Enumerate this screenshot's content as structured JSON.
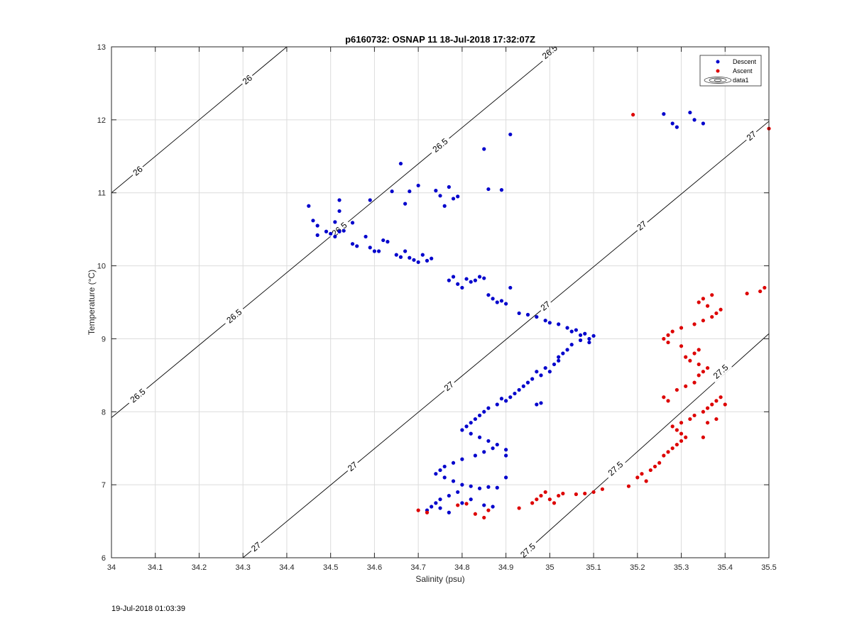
{
  "chart_data": {
    "type": "scatter",
    "title": "p6160732: OSNAP 11 18-Jul-2018 17:32:07Z",
    "xlabel": "Salinity (psu)",
    "ylabel": "Temperature (°C)",
    "xlim": [
      34,
      35.5
    ],
    "ylim": [
      6,
      13
    ],
    "xticks": [
      "34",
      "34.1",
      "34.2",
      "34.3",
      "34.4",
      "34.5",
      "34.6",
      "34.7",
      "34.8",
      "34.9",
      "35",
      "35.1",
      "35.2",
      "35.3",
      "35.4",
      "35.5"
    ],
    "yticks": [
      "6",
      "7",
      "8",
      "9",
      "10",
      "11",
      "12",
      "13"
    ],
    "grid": true,
    "legend_position": "top-right",
    "legend": [
      "Descent",
      "Ascent",
      "data1"
    ],
    "colors": {
      "descent": "#0000cc",
      "ascent": "#dd0000",
      "contour": "#000000",
      "grid": "#dcdcdc"
    },
    "contours": [
      {
        "level": "26",
        "points": [
          [
            34,
            11.0
          ],
          [
            34.5,
            13.5
          ]
        ],
        "labels": [
          [
            34.06,
            11.3
          ],
          [
            34.31,
            12.55
          ]
        ]
      },
      {
        "level": "26.5",
        "points": [
          [
            34,
            7.92
          ],
          [
            35.2,
            13.88
          ]
        ],
        "labels": [
          [
            34.06,
            8.22
          ],
          [
            34.28,
            9.31
          ],
          [
            34.52,
            10.5
          ],
          [
            34.75,
            11.65
          ],
          [
            35.0,
            12.93
          ]
        ]
      },
      {
        "level": "27",
        "points": [
          [
            34.3,
            6.0
          ],
          [
            35.5,
            11.98
          ]
        ],
        "labels": [
          [
            34.33,
            6.15
          ],
          [
            34.55,
            7.25
          ],
          [
            34.77,
            8.35
          ],
          [
            34.99,
            9.45
          ],
          [
            35.21,
            10.55
          ],
          [
            35.46,
            11.78
          ]
        ]
      },
      {
        "level": "27.5",
        "points": [
          [
            34.93,
            6.0
          ],
          [
            35.5,
            9.07
          ]
        ],
        "labels": [
          [
            34.95,
            6.1
          ],
          [
            35.15,
            7.22
          ],
          [
            35.39,
            8.55
          ]
        ]
      }
    ],
    "series": [
      {
        "name": "Descent",
        "points": [
          [
            34.45,
            10.82
          ],
          [
            34.46,
            10.62
          ],
          [
            34.47,
            10.55
          ],
          [
            34.47,
            10.42
          ],
          [
            34.49,
            10.47
          ],
          [
            34.5,
            10.44
          ],
          [
            34.51,
            10.4
          ],
          [
            34.52,
            10.47
          ],
          [
            34.53,
            10.48
          ],
          [
            34.52,
            10.9
          ],
          [
            34.52,
            10.75
          ],
          [
            34.51,
            10.6
          ],
          [
            34.55,
            10.59
          ],
          [
            34.55,
            10.3
          ],
          [
            34.56,
            10.27
          ],
          [
            34.58,
            10.4
          ],
          [
            34.59,
            10.25
          ],
          [
            34.6,
            10.2
          ],
          [
            34.61,
            10.2
          ],
          [
            34.62,
            10.35
          ],
          [
            34.63,
            10.33
          ],
          [
            34.59,
            10.9
          ],
          [
            34.64,
            11.02
          ],
          [
            34.66,
            11.4
          ],
          [
            34.67,
            10.85
          ],
          [
            34.68,
            11.02
          ],
          [
            34.7,
            11.1
          ],
          [
            34.65,
            10.15
          ],
          [
            34.66,
            10.12
          ],
          [
            34.67,
            10.2
          ],
          [
            34.68,
            10.11
          ],
          [
            34.69,
            10.08
          ],
          [
            34.7,
            10.05
          ],
          [
            34.71,
            10.15
          ],
          [
            34.72,
            10.07
          ],
          [
            34.73,
            10.1
          ],
          [
            34.74,
            11.03
          ],
          [
            34.75,
            10.96
          ],
          [
            34.76,
            10.82
          ],
          [
            34.77,
            11.08
          ],
          [
            34.78,
            10.92
          ],
          [
            34.79,
            10.95
          ],
          [
            34.85,
            11.6
          ],
          [
            34.86,
            11.05
          ],
          [
            34.89,
            11.04
          ],
          [
            34.91,
            11.8
          ],
          [
            34.77,
            9.8
          ],
          [
            34.78,
            9.85
          ],
          [
            34.79,
            9.75
          ],
          [
            34.8,
            9.7
          ],
          [
            34.81,
            9.82
          ],
          [
            34.82,
            9.78
          ],
          [
            34.83,
            9.8
          ],
          [
            34.84,
            9.85
          ],
          [
            34.85,
            9.83
          ],
          [
            34.86,
            9.6
          ],
          [
            34.87,
            9.55
          ],
          [
            34.88,
            9.5
          ],
          [
            34.89,
            9.52
          ],
          [
            34.9,
            9.48
          ],
          [
            34.91,
            9.7
          ],
          [
            34.93,
            9.35
          ],
          [
            34.95,
            9.33
          ],
          [
            34.97,
            9.3
          ],
          [
            34.99,
            9.25
          ],
          [
            35.0,
            9.22
          ],
          [
            35.02,
            9.2
          ],
          [
            35.04,
            9.15
          ],
          [
            35.05,
            9.1
          ],
          [
            35.06,
            9.12
          ],
          [
            35.07,
            9.05
          ],
          [
            35.08,
            9.07
          ],
          [
            35.09,
            9.0
          ],
          [
            35.1,
            9.04
          ],
          [
            35.09,
            8.95
          ],
          [
            35.07,
            8.98
          ],
          [
            35.05,
            8.92
          ],
          [
            35.04,
            8.85
          ],
          [
            35.03,
            8.8
          ],
          [
            35.02,
            8.75
          ],
          [
            35.02,
            8.7
          ],
          [
            35.01,
            8.65
          ],
          [
            35.0,
            8.55
          ],
          [
            34.99,
            8.6
          ],
          [
            34.98,
            8.5
          ],
          [
            34.97,
            8.55
          ],
          [
            34.96,
            8.45
          ],
          [
            34.95,
            8.4
          ],
          [
            34.94,
            8.35
          ],
          [
            34.93,
            8.3
          ],
          [
            34.92,
            8.25
          ],
          [
            34.91,
            8.2
          ],
          [
            34.9,
            8.15
          ],
          [
            34.89,
            8.18
          ],
          [
            34.88,
            8.1
          ],
          [
            34.97,
            8.1
          ],
          [
            34.98,
            8.12
          ],
          [
            34.86,
            8.05
          ],
          [
            34.85,
            8.0
          ],
          [
            34.84,
            7.95
          ],
          [
            34.83,
            7.9
          ],
          [
            34.82,
            7.85
          ],
          [
            34.81,
            7.8
          ],
          [
            34.8,
            7.75
          ],
          [
            34.82,
            7.7
          ],
          [
            34.84,
            7.65
          ],
          [
            34.86,
            7.6
          ],
          [
            34.88,
            7.55
          ],
          [
            34.87,
            7.5
          ],
          [
            34.85,
            7.45
          ],
          [
            34.9,
            7.48
          ],
          [
            34.83,
            7.4
          ],
          [
            34.8,
            7.35
          ],
          [
            34.78,
            7.3
          ],
          [
            34.76,
            7.25
          ],
          [
            34.75,
            7.2
          ],
          [
            34.74,
            7.15
          ],
          [
            34.76,
            7.1
          ],
          [
            34.78,
            7.05
          ],
          [
            34.8,
            7.0
          ],
          [
            34.82,
            6.98
          ],
          [
            34.84,
            6.95
          ],
          [
            34.86,
            6.97
          ],
          [
            34.88,
            6.96
          ],
          [
            34.79,
            6.9
          ],
          [
            34.77,
            6.85
          ],
          [
            34.75,
            6.8
          ],
          [
            34.74,
            6.75
          ],
          [
            34.73,
            6.7
          ],
          [
            34.72,
            6.65
          ],
          [
            34.75,
            6.68
          ],
          [
            34.77,
            6.62
          ],
          [
            34.8,
            6.75
          ],
          [
            34.85,
            6.72
          ],
          [
            34.87,
            6.7
          ],
          [
            34.82,
            6.8
          ],
          [
            34.9,
            7.1
          ],
          [
            34.9,
            7.4
          ],
          [
            35.26,
            12.08
          ],
          [
            35.28,
            11.95
          ],
          [
            35.29,
            11.9
          ],
          [
            35.32,
            12.1
          ],
          [
            35.33,
            12.0
          ],
          [
            35.35,
            11.95
          ]
        ]
      },
      {
        "name": "Ascent",
        "points": [
          [
            34.7,
            6.65
          ],
          [
            34.72,
            6.62
          ],
          [
            34.79,
            6.72
          ],
          [
            34.81,
            6.74
          ],
          [
            34.83,
            6.6
          ],
          [
            34.85,
            6.55
          ],
          [
            34.86,
            6.65
          ],
          [
            34.93,
            6.68
          ],
          [
            34.96,
            6.75
          ],
          [
            34.97,
            6.8
          ],
          [
            34.98,
            6.85
          ],
          [
            34.99,
            6.9
          ],
          [
            35.0,
            6.8
          ],
          [
            35.01,
            6.75
          ],
          [
            35.02,
            6.85
          ],
          [
            35.03,
            6.88
          ],
          [
            35.06,
            6.87
          ],
          [
            35.08,
            6.88
          ],
          [
            35.1,
            6.9
          ],
          [
            35.12,
            6.94
          ],
          [
            35.18,
            6.98
          ],
          [
            35.2,
            7.1
          ],
          [
            35.21,
            7.15
          ],
          [
            35.22,
            7.05
          ],
          [
            35.23,
            7.2
          ],
          [
            35.24,
            7.25
          ],
          [
            35.25,
            7.3
          ],
          [
            35.26,
            7.4
          ],
          [
            35.27,
            7.45
          ],
          [
            35.28,
            7.5
          ],
          [
            35.29,
            7.55
          ],
          [
            35.3,
            7.6
          ],
          [
            35.31,
            7.65
          ],
          [
            35.3,
            7.7
          ],
          [
            35.29,
            7.75
          ],
          [
            35.28,
            7.8
          ],
          [
            35.3,
            7.85
          ],
          [
            35.32,
            7.9
          ],
          [
            35.33,
            7.95
          ],
          [
            35.35,
            8.0
          ],
          [
            35.36,
            8.05
          ],
          [
            35.37,
            8.1
          ],
          [
            35.38,
            8.15
          ],
          [
            35.39,
            8.2
          ],
          [
            35.4,
            8.1
          ],
          [
            35.36,
            7.85
          ],
          [
            35.38,
            7.9
          ],
          [
            35.35,
            7.65
          ],
          [
            35.26,
            8.2
          ],
          [
            35.27,
            8.15
          ],
          [
            35.29,
            8.3
          ],
          [
            35.31,
            8.35
          ],
          [
            35.33,
            8.4
          ],
          [
            35.34,
            8.5
          ],
          [
            35.35,
            8.55
          ],
          [
            35.36,
            8.6
          ],
          [
            35.34,
            8.65
          ],
          [
            35.32,
            8.7
          ],
          [
            35.31,
            8.75
          ],
          [
            35.33,
            8.8
          ],
          [
            35.34,
            8.85
          ],
          [
            35.3,
            8.9
          ],
          [
            35.27,
            8.95
          ],
          [
            35.26,
            9.0
          ],
          [
            35.27,
            9.05
          ],
          [
            35.28,
            9.1
          ],
          [
            35.3,
            9.15
          ],
          [
            35.33,
            9.2
          ],
          [
            35.35,
            9.25
          ],
          [
            35.37,
            9.3
          ],
          [
            35.38,
            9.35
          ],
          [
            35.39,
            9.4
          ],
          [
            35.36,
            9.45
          ],
          [
            35.34,
            9.5
          ],
          [
            35.35,
            9.55
          ],
          [
            35.37,
            9.6
          ],
          [
            35.45,
            9.62
          ],
          [
            35.48,
            9.65
          ],
          [
            35.49,
            9.7
          ],
          [
            35.5,
            11.88
          ],
          [
            35.19,
            12.07
          ]
        ]
      }
    ]
  },
  "footer_timestamp": "19-Jul-2018 01:03:39"
}
